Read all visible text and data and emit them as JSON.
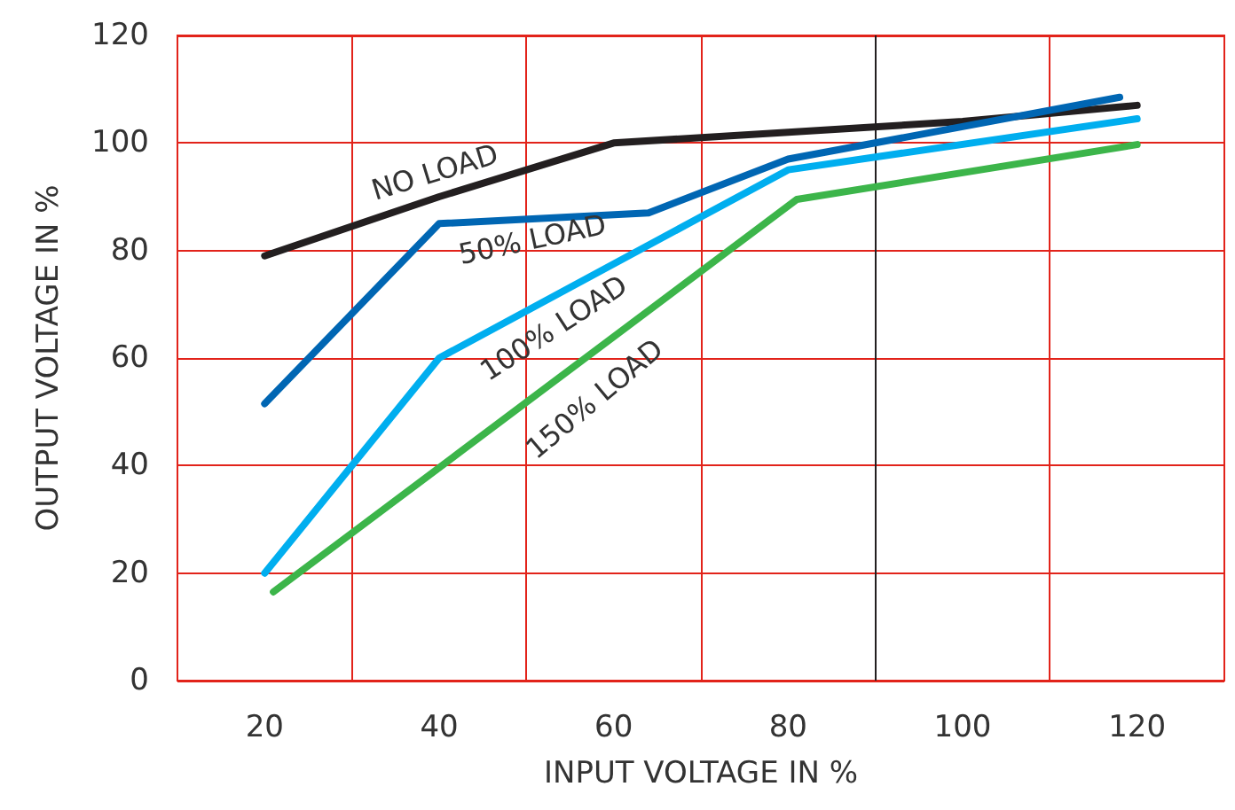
{
  "chart_data": {
    "type": "line",
    "xlabel": "INPUT VOLTAGE IN %",
    "ylabel": "OUTPUT VOLTAGE IN %",
    "xlim": [
      10,
      130
    ],
    "ylim": [
      0,
      120
    ],
    "xticks": [
      20,
      {
        "value": 30,
        "label": null
      },
      40,
      {
        "value": 50,
        "label": null
      },
      60,
      {
        "value": 70,
        "label": null
      },
      80,
      {
        "value": 90,
        "label": null
      },
      100,
      {
        "value": 110,
        "label": null
      },
      120
    ],
    "yticks": [
      0,
      20,
      40,
      60,
      80,
      100,
      120
    ],
    "grid": true,
    "marker": "none",
    "line_style": "solid",
    "ref_lines": [
      {
        "axis": "x",
        "value": 90,
        "label": null,
        "color": "#231f20"
      }
    ],
    "series": [
      {
        "color": "#231f20",
        "x": [
          20,
          40,
          60,
          80,
          100,
          120
        ],
        "values": [
          79,
          90,
          100,
          102,
          104,
          107
        ]
      },
      {
        "color": "#0066b3",
        "x": [
          20,
          40,
          64,
          80,
          118
        ],
        "values": [
          51.5,
          85,
          87,
          97,
          108.5
        ]
      },
      {
        "color": "#00aeef",
        "x": [
          20,
          40,
          80,
          120
        ],
        "values": [
          20,
          60,
          95,
          104.5
        ]
      },
      {
        "color": "#3cb54a",
        "x": [
          21,
          81,
          120
        ],
        "values": [
          16.5,
          89.5,
          99.7
        ]
      }
    ],
    "annotations": [
      "NO LOAD",
      "50% LOAD",
      "100% LOAD",
      "150% LOAD"
    ]
  }
}
